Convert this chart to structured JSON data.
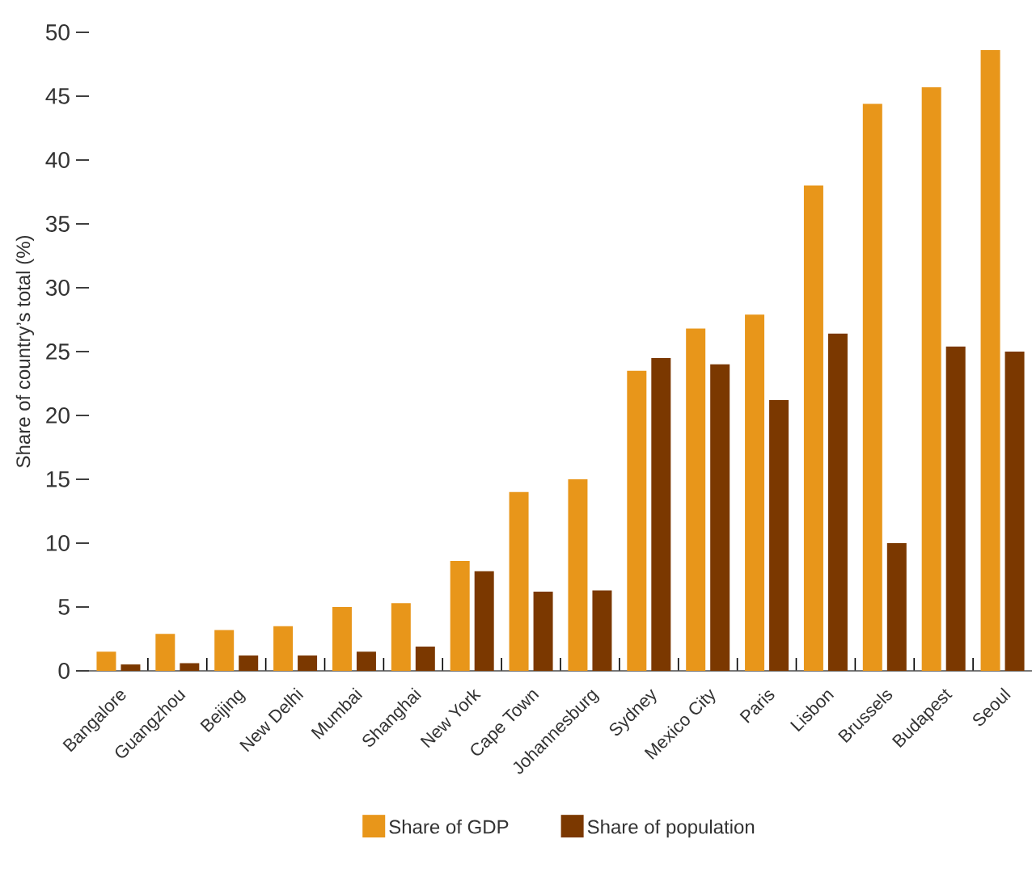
{
  "chart_data": {
    "type": "bar",
    "ylabel": "Share of country’s total (%)",
    "categories": [
      "Bangalore",
      "Guangzhou",
      "Beijing",
      "New Delhi",
      "Mumbai",
      "Shanghai",
      "New York",
      "Cape Town",
      "Johannesburg",
      "Sydney",
      "Mexico City",
      "Paris",
      "Lisbon",
      "Brussels",
      "Budapest",
      "Seoul"
    ],
    "series": [
      {
        "name": "Share of GDP",
        "color": "#e8961a",
        "values": [
          1.5,
          2.9,
          3.2,
          3.5,
          5.0,
          5.3,
          8.6,
          14.0,
          15.0,
          23.5,
          26.8,
          27.9,
          38.0,
          44.4,
          45.7,
          48.6
        ]
      },
      {
        "name": "Share of population",
        "color": "#7b3800",
        "values": [
          0.5,
          0.6,
          1.2,
          1.2,
          1.5,
          1.9,
          7.8,
          6.2,
          6.3,
          24.5,
          24.0,
          21.2,
          26.4,
          10.0,
          25.4,
          25.0
        ]
      }
    ],
    "ylim": [
      0,
      50
    ],
    "yticks": [
      0,
      5,
      10,
      15,
      20,
      25,
      30,
      35,
      40,
      45,
      50
    ],
    "legend": "bottom"
  }
}
